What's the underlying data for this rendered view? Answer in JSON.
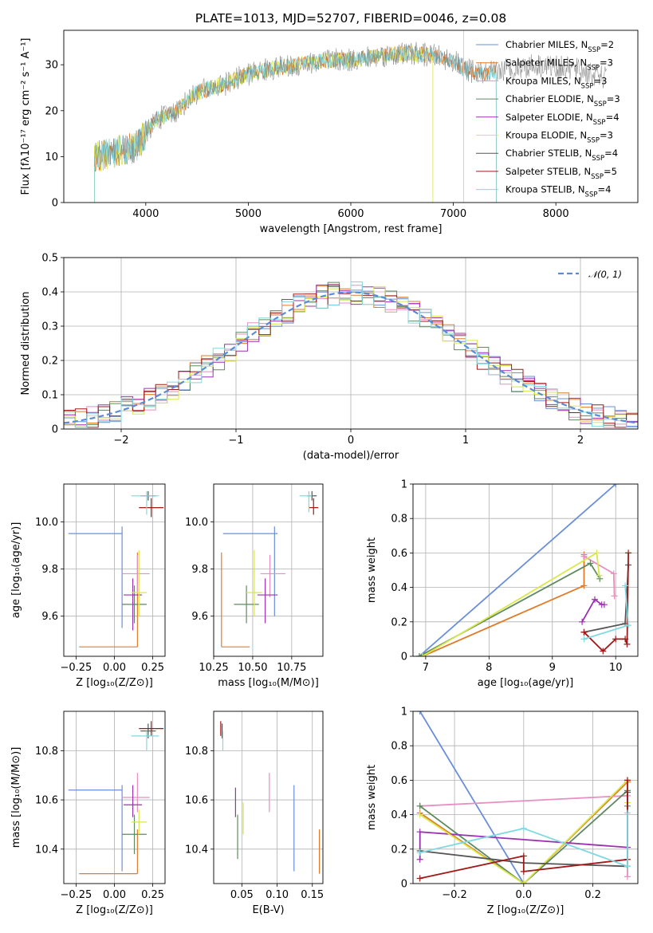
{
  "title": "PLATE=1013, MJD=52707, FIBERID=0046, z=0.08",
  "colors": {
    "cm": "#6a8fd8",
    "sm": "#e07b2a",
    "km": "#e88ec0",
    "ce": "#5f8a5f",
    "se": "#9b30b0",
    "ke": "#d8e84a",
    "cs": "#555555",
    "ss": "#a01818",
    "ks": "#80d8e0",
    "spec": "#808080"
  },
  "chart_data": [
    {
      "id": "spectrum",
      "type": "line",
      "title": "PLATE=1013, MJD=52707, FIBERID=0046, z=0.08",
      "xlabel": "wavelength [Angstrom, rest frame]",
      "ylabel": "Flux [fλ10⁻¹⁷ erg cm⁻² s⁻¹ A⁻¹]",
      "xlim": [
        3200,
        8800
      ],
      "ylim": [
        0,
        37.5
      ],
      "xticks": [
        4000,
        5000,
        6000,
        7000,
        8000
      ],
      "yticks": [
        0,
        10,
        20,
        30
      ],
      "continuum_x": [
        3500,
        3700,
        3900,
        4000,
        4100,
        4300,
        4500,
        4800,
        5000,
        5200,
        5500,
        5800,
        6000,
        6300,
        6600,
        6800,
        7000,
        7100,
        7300,
        7500,
        7800,
        8200,
        8500
      ],
      "continuum_y": [
        10,
        11,
        12,
        15,
        18,
        20,
        24,
        26,
        28,
        29,
        30,
        31,
        31,
        32,
        32.5,
        32,
        31,
        29,
        28,
        29,
        30,
        29,
        27
      ],
      "legend": [
        {
          "key": "cm",
          "label": "Chabrier MILES, N",
          "sub": "SSP",
          "n": "=2"
        },
        {
          "key": "sm",
          "label": "Salpeter MILES, N",
          "sub": "SSP",
          "n": "=3"
        },
        {
          "key": "km",
          "label": "Kroupa MILES, N",
          "sub": "SSP",
          "n": "=3"
        },
        {
          "key": "ce",
          "label": "Chabrier ELODIE, N",
          "sub": "SSP",
          "n": "=3"
        },
        {
          "key": "se",
          "label": "Salpeter ELODIE, N",
          "sub": "SSP",
          "n": "=4"
        },
        {
          "key": "ke",
          "label": "Kroupa ELODIE, N",
          "sub": "SSP",
          "n": "=3"
        },
        {
          "key": "cs",
          "label": "Chabrier STELIB, N",
          "sub": "SSP",
          "n": "=4"
        },
        {
          "key": "ss",
          "label": "Salpeter STELIB, N",
          "sub": "SSP",
          "n": "=5"
        },
        {
          "key": "ks",
          "label": "Kroupa STELIB, N",
          "sub": "SSP",
          "n": "=4"
        }
      ]
    },
    {
      "id": "residuals",
      "type": "line",
      "xlabel": "(data-model)/error",
      "ylabel": "Normed distribution",
      "xlim": [
        -2.5,
        2.5
      ],
      "ylim": [
        0,
        0.5
      ],
      "xticks": [
        -2,
        -1,
        0,
        1,
        2
      ],
      "yticks": [
        0.0,
        0.1,
        0.2,
        0.3,
        0.4,
        0.5
      ],
      "bin_width": 0.1,
      "gaussian_label": "𝒩(0, 1)",
      "grid": true
    },
    {
      "id": "age_vs_Z",
      "type": "scatter",
      "xlabel": "Z [log₁₀(Z/Z⊙)]",
      "ylabel": "age  [log₁₀(age/yr)]",
      "xlim": [
        -0.33,
        0.33
      ],
      "ylim": [
        9.43,
        10.16
      ],
      "xticks": [
        -0.25,
        0.0,
        0.25
      ],
      "xticklabels": [
        "−0.25",
        "0.00",
        "0.25"
      ],
      "yticks": [
        9.6,
        9.8,
        10.0
      ],
      "points": [
        {
          "key": "cm",
          "x": 0.05,
          "xerr": [
            0.35,
            0
          ],
          "y": 9.95,
          "yerr": [
            0.4,
            0.03
          ]
        },
        {
          "key": "sm",
          "x": 0.15,
          "xerr": [
            0.38,
            0
          ],
          "y": 9.47,
          "yerr": [
            0,
            0.4
          ]
        },
        {
          "key": "km",
          "x": 0.15,
          "xerr": [
            0.1,
            0.08
          ],
          "y": 9.78,
          "yerr": [
            0.08,
            0.08
          ]
        },
        {
          "key": "ce",
          "x": 0.13,
          "xerr": [
            0.08,
            0.08
          ],
          "y": 9.65,
          "yerr": [
            0.08,
            0.08
          ]
        },
        {
          "key": "se",
          "x": 0.12,
          "xerr": [
            0.06,
            0.06
          ],
          "y": 9.69,
          "yerr": [
            0.15,
            0.07
          ]
        },
        {
          "key": "ke",
          "x": 0.16,
          "xerr": [
            0.05,
            0.05
          ],
          "y": 9.7,
          "yerr": [
            0.1,
            0.18
          ]
        },
        {
          "key": "cs",
          "x": 0.22,
          "xerr": [
            0.05,
            0.05
          ],
          "y": 10.11,
          "yerr": [
            0.02,
            0.02
          ]
        },
        {
          "key": "ss",
          "x": 0.24,
          "xerr": [
            0.08,
            0.08
          ],
          "y": 10.06,
          "yerr": [
            0.04,
            0.04
          ]
        },
        {
          "key": "ks",
          "x": 0.21,
          "xerr": [
            0.1,
            0.08
          ],
          "y": 10.11,
          "yerr": [
            0.08,
            0.02
          ]
        }
      ]
    },
    {
      "id": "age_vs_mass",
      "type": "scatter",
      "xlabel": "mass [log₁₀(M/M⊙)]",
      "xlim": [
        10.25,
        10.95
      ],
      "ylim": [
        9.43,
        10.16
      ],
      "xticks": [
        10.25,
        10.5,
        10.75
      ],
      "xticklabels": [
        "10.25",
        "10.50",
        "10.75"
      ],
      "yticks": [
        9.6,
        9.8,
        10.0
      ],
      "points": [
        {
          "key": "cm",
          "x": 10.64,
          "xerr": [
            0.33,
            0.02
          ],
          "y": 9.95,
          "yerr": [
            0.35,
            0.03
          ]
        },
        {
          "key": "sm",
          "x": 10.3,
          "xerr": [
            0,
            0.18
          ],
          "y": 9.47,
          "yerr": [
            0,
            0.4
          ]
        },
        {
          "key": "km",
          "x": 10.61,
          "xerr": [
            0.06,
            0.1
          ],
          "y": 9.78,
          "yerr": [
            0.1,
            0.08
          ]
        },
        {
          "key": "ce",
          "x": 10.46,
          "xerr": [
            0.08,
            0.08
          ],
          "y": 9.65,
          "yerr": [
            0.08,
            0.08
          ]
        },
        {
          "key": "se",
          "x": 10.58,
          "xerr": [
            0.05,
            0.08
          ],
          "y": 9.69,
          "yerr": [
            0.12,
            0.07
          ]
        },
        {
          "key": "ke",
          "x": 10.51,
          "xerr": [
            0.05,
            0.05
          ],
          "y": 9.7,
          "yerr": [
            0.1,
            0.18
          ]
        },
        {
          "key": "cs",
          "x": 10.88,
          "xerr": [
            0.03,
            0.03
          ],
          "y": 10.11,
          "yerr": [
            0.02,
            0.02
          ]
        },
        {
          "key": "ss",
          "x": 10.89,
          "xerr": [
            0.03,
            0.03
          ],
          "y": 10.06,
          "yerr": [
            0.03,
            0.04
          ]
        },
        {
          "key": "ks",
          "x": 10.86,
          "xerr": [
            0.06,
            0.02
          ],
          "y": 10.11,
          "yerr": [
            0.07,
            0.02
          ]
        }
      ]
    },
    {
      "id": "massweight_vs_age",
      "type": "line",
      "xlabel": "age  [log₁₀(age/yr)]",
      "ylabel": "mass weight",
      "xlim": [
        6.8,
        10.35
      ],
      "ylim": [
        0,
        1
      ],
      "xticks": [
        7,
        8,
        9,
        10
      ],
      "yticks": [
        0.0,
        0.2,
        0.4,
        0.6,
        0.8,
        1.0
      ],
      "series": [
        {
          "key": "cm",
          "x": [
            6.9,
            10.0
          ],
          "y": [
            0.0,
            1.0
          ]
        },
        {
          "key": "sm",
          "x": [
            6.95,
            9.5,
            9.5
          ],
          "y": [
            0.0,
            0.41,
            0.59
          ]
        },
        {
          "key": "km",
          "x": [
            9.5,
            9.97,
            9.98
          ],
          "y": [
            0.58,
            0.48,
            0.35
          ]
        },
        {
          "key": "ce",
          "x": [
            6.9,
            9.6,
            9.75
          ],
          "y": [
            0.0,
            0.54,
            0.45
          ]
        },
        {
          "key": "se",
          "x": [
            9.47,
            9.67,
            9.78,
            9.82
          ],
          "y": [
            0.2,
            0.33,
            0.3,
            0.3
          ]
        },
        {
          "key": "ke",
          "x": [
            6.95,
            9.7,
            9.74
          ],
          "y": [
            0.0,
            0.6,
            0.47
          ]
        },
        {
          "key": "cs",
          "x": [
            9.5,
            10.15,
            10.2
          ],
          "y": [
            0.14,
            0.19,
            0.53
          ]
        },
        {
          "key": "ss",
          "x": [
            9.5,
            9.8,
            10.0,
            10.15,
            10.18,
            10.2
          ],
          "y": [
            0.14,
            0.03,
            0.1,
            0.1,
            0.07,
            0.6
          ]
        },
        {
          "key": "ks",
          "x": [
            9.5,
            10.2,
            10.15
          ],
          "y": [
            0.1,
            0.18,
            0.41
          ]
        }
      ]
    },
    {
      "id": "mass_vs_Z",
      "type": "scatter",
      "xlabel": "Z [log₁₀(Z/Z⊙)]",
      "ylabel": "mass [log₁₀(M/M⊙)]",
      "xlim": [
        -0.33,
        0.33
      ],
      "ylim": [
        10.26,
        10.96
      ],
      "xticks": [
        -0.25,
        0.0,
        0.25
      ],
      "xticklabels": [
        "−0.25",
        "0.00",
        "0.25"
      ],
      "yticks": [
        10.4,
        10.6,
        10.8
      ],
      "points": [
        {
          "key": "cm",
          "x": 0.05,
          "xerr": [
            0.35,
            0
          ],
          "y": 10.64,
          "yerr": [
            0.33,
            0.02
          ]
        },
        {
          "key": "sm",
          "x": 0.15,
          "xerr": [
            0.38,
            0
          ],
          "y": 10.3,
          "yerr": [
            0,
            0.18
          ]
        },
        {
          "key": "km",
          "x": 0.15,
          "xerr": [
            0.1,
            0.08
          ],
          "y": 10.61,
          "yerr": [
            0.06,
            0.1
          ]
        },
        {
          "key": "ce",
          "x": 0.13,
          "xerr": [
            0.08,
            0.08
          ],
          "y": 10.46,
          "yerr": [
            0.08,
            0.08
          ]
        },
        {
          "key": "se",
          "x": 0.12,
          "xerr": [
            0.06,
            0.06
          ],
          "y": 10.58,
          "yerr": [
            0.05,
            0.08
          ]
        },
        {
          "key": "ke",
          "x": 0.16,
          "xerr": [
            0.05,
            0.05
          ],
          "y": 10.51,
          "yerr": [
            0.05,
            0.05
          ]
        },
        {
          "key": "cs",
          "x": 0.22,
          "xerr": [
            0.05,
            0.05
          ],
          "y": 10.88,
          "yerr": [
            0.03,
            0.03
          ]
        },
        {
          "key": "ss",
          "x": 0.24,
          "xerr": [
            0.08,
            0.08
          ],
          "y": 10.89,
          "yerr": [
            0.03,
            0.03
          ]
        },
        {
          "key": "ks",
          "x": 0.21,
          "xerr": [
            0.1,
            0.08
          ],
          "y": 10.86,
          "yerr": [
            0.06,
            0.02
          ]
        }
      ]
    },
    {
      "id": "mass_vs_EBV",
      "type": "scatter",
      "xlabel": "E(B-V)",
      "xlim": [
        0.01,
        0.165
      ],
      "ylim": [
        10.26,
        10.96
      ],
      "xticks": [
        0.05,
        0.1,
        0.15
      ],
      "xticklabels": [
        "0.05",
        "0.10",
        "0.15"
      ],
      "yticks": [
        10.4,
        10.6,
        10.8
      ],
      "points": [
        {
          "key": "cm",
          "x": 0.124,
          "y": 10.64,
          "yerr": [
            0.33,
            0.02
          ]
        },
        {
          "key": "sm",
          "x": 0.16,
          "y": 10.3,
          "yerr": [
            0,
            0.18
          ]
        },
        {
          "key": "km",
          "x": 0.089,
          "y": 10.61,
          "yerr": [
            0.06,
            0.1
          ]
        },
        {
          "key": "ce",
          "x": 0.044,
          "y": 10.46,
          "yerr": [
            0.1,
            0.08
          ]
        },
        {
          "key": "se",
          "x": 0.041,
          "y": 10.58,
          "yerr": [
            0.05,
            0.07
          ]
        },
        {
          "key": "ke",
          "x": 0.052,
          "y": 10.51,
          "yerr": [
            0.05,
            0.08
          ]
        },
        {
          "key": "cs",
          "x": 0.022,
          "y": 10.88,
          "yerr": [
            0.03,
            0.03
          ]
        },
        {
          "key": "ss",
          "x": 0.02,
          "y": 10.89,
          "yerr": [
            0.03,
            0.03
          ]
        },
        {
          "key": "ks",
          "x": 0.023,
          "y": 10.86,
          "yerr": [
            0.06,
            0.02
          ]
        }
      ]
    },
    {
      "id": "massweight_vs_Z",
      "type": "line",
      "xlabel": "Z [log₁₀(Z/Z⊙)]",
      "ylabel": "mass weight",
      "xlim": [
        -0.32,
        0.33
      ],
      "ylim": [
        0,
        1
      ],
      "xticks": [
        -0.2,
        0.0,
        0.2
      ],
      "xticklabels": [
        "−0.2",
        "0.0",
        "0.2"
      ],
      "yticks": [
        0.0,
        0.2,
        0.4,
        0.6,
        0.8,
        1.0
      ],
      "series": [
        {
          "key": "cm",
          "x": [
            -0.3,
            0.0
          ],
          "y": [
            1.0,
            0.0
          ]
        },
        {
          "key": "sm",
          "x": [
            -0.3,
            0.0,
            0.3
          ],
          "y": [
            0.41,
            0.0,
            0.59
          ]
        },
        {
          "key": "km",
          "x": [
            -0.3,
            0.3,
            0.3
          ],
          "y": [
            0.45,
            0.51,
            0.04
          ]
        },
        {
          "key": "ce",
          "x": [
            -0.3,
            0.0,
            0.3,
            0.3
          ],
          "y": [
            0.45,
            0.0,
            0.54,
            0.45
          ]
        },
        {
          "key": "se",
          "x": [
            -0.3,
            -0.3,
            0.3
          ],
          "y": [
            0.14,
            0.3,
            0.21
          ]
        },
        {
          "key": "ke",
          "x": [
            -0.3,
            0.0,
            0.3,
            0.3
          ],
          "y": [
            0.4,
            0.0,
            0.6,
            0.47
          ]
        },
        {
          "key": "cs",
          "x": [
            -0.3,
            0.0,
            0.3,
            0.3
          ],
          "y": [
            0.19,
            0.12,
            0.1,
            0.53
          ]
        },
        {
          "key": "ss",
          "x": [
            -0.3,
            0.0,
            0.0,
            0.3,
            0.3
          ],
          "y": [
            0.03,
            0.16,
            0.07,
            0.14,
            0.6
          ]
        },
        {
          "key": "ks",
          "x": [
            -0.3,
            0.0,
            0.3,
            0.3
          ],
          "y": [
            0.18,
            0.32,
            0.1,
            0.41
          ]
        }
      ]
    }
  ]
}
